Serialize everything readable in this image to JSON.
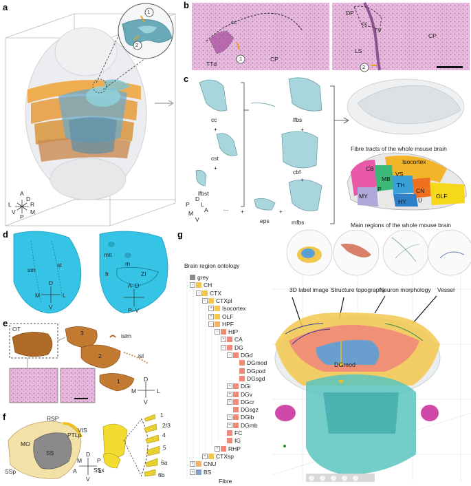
{
  "panels": {
    "a": {
      "letter": "a",
      "circle_labels": [
        "1",
        "2"
      ],
      "axes": {
        "a": "A",
        "d": "D",
        "l": "L",
        "r": "R",
        "m": "M",
        "v": "V",
        "p": "P"
      }
    },
    "b": {
      "letter": "b",
      "left": {
        "cc": "cc",
        "ttd": "TTd",
        "cp": "CP",
        "circle": "1"
      },
      "right": {
        "dp": "DP",
        "cc": "cc",
        "lv": "LV",
        "cp": "CP",
        "ls": "LS",
        "circle": "2"
      }
    },
    "c": {
      "letter": "c",
      "tracts": {
        "cc": "cc",
        "cst": "cst",
        "lfbst": "lfbst",
        "lfbs": "lfbs",
        "cbf": "cbf",
        "eps": "eps",
        "mfbs": "mfbs",
        "dots": "···"
      },
      "plus": "+",
      "axes": {
        "p": "P",
        "d": "D",
        "l": "L",
        "a": "A",
        "m": "M",
        "v": "V"
      },
      "captions": {
        "fibre": "Fibre tracts of the whole mouse brain",
        "regions": "Main regions of the whole mouse brain"
      },
      "regions": {
        "cb": "CB",
        "isocortex": "Isocortex",
        "mb": "MB",
        "vs": "VS",
        "th": "TH",
        "p": "P",
        "my": "MY",
        "cn": "CN",
        "hy": "HY",
        "u": "U",
        "olf": "OLF"
      }
    },
    "d": {
      "letter": "d",
      "left": {
        "sm": "sm",
        "st": "st"
      },
      "right": {
        "mtt": "mtt",
        "m": "m",
        "fr": "fr",
        "zi": "ZI"
      },
      "axes_left": {
        "d": "D",
        "m": "M",
        "l": "L",
        "v": "V"
      },
      "axes_right": {
        "ad": "A–D",
        "pv": "P–V"
      }
    },
    "e": {
      "letter": "e",
      "ot": "OT",
      "layers": [
        "3",
        "2",
        "1"
      ],
      "islm": "islm",
      "isl": "isl",
      "axes": {
        "d": "D",
        "m": "M",
        "l": "L",
        "v": "V"
      }
    },
    "f": {
      "letter": "f",
      "areas": {
        "rsp": "RSP",
        "vis": "VIS",
        "mo": "MO",
        "ptlp": "PTLp",
        "ss": "SS",
        "ssp": "SSp",
        "sss": "SSs"
      },
      "layers": [
        "1",
        "2/3",
        "4",
        "5",
        "6a",
        "6b"
      ],
      "axes": {
        "d": "D",
        "m": "M",
        "a": "A",
        "l": "L",
        "p": "P",
        "v": "V"
      }
    },
    "g": {
      "letter": "g",
      "ontology_title": "Brain region ontology",
      "tree": [
        {
          "label": "grey",
          "color": "#8a8a8a",
          "indent": 0,
          "toggle": ""
        },
        {
          "label": "CH",
          "color": "#f3c74e",
          "indent": 1,
          "toggle": "−"
        },
        {
          "label": "CTX",
          "color": "#f3c74e",
          "indent": 2,
          "toggle": "−"
        },
        {
          "label": "CTXpl",
          "color": "#f3c74e",
          "indent": 3,
          "toggle": "−"
        },
        {
          "label": "Isocortex",
          "color": "#f3c74e",
          "indent": 4,
          "toggle": "+"
        },
        {
          "label": "OLF",
          "color": "#f3c74e",
          "indent": 4,
          "toggle": "+"
        },
        {
          "label": "HPF",
          "color": "#f3b36a",
          "indent": 4,
          "toggle": "−"
        },
        {
          "label": "HIP",
          "color": "#f08a78",
          "indent": 5,
          "toggle": "−"
        },
        {
          "label": "CA",
          "color": "#f08a78",
          "indent": 6,
          "toggle": "+"
        },
        {
          "label": "DG",
          "color": "#f08a78",
          "indent": 6,
          "toggle": "−"
        },
        {
          "label": "DGd",
          "color": "#f08a78",
          "indent": 7,
          "toggle": "−"
        },
        {
          "label": "DGmod",
          "color": "#f08a78",
          "indent": 8,
          "toggle": ""
        },
        {
          "label": "DGpod",
          "color": "#f08a78",
          "indent": 8,
          "toggle": ""
        },
        {
          "label": "DGsgd",
          "color": "#f08a78",
          "indent": 8,
          "toggle": ""
        },
        {
          "label": "DGi",
          "color": "#f08a78",
          "indent": 7,
          "toggle": "+"
        },
        {
          "label": "DGv",
          "color": "#f08a78",
          "indent": 7,
          "toggle": "+"
        },
        {
          "label": "DGcr",
          "color": "#f08a78",
          "indent": 7,
          "toggle": "+"
        },
        {
          "label": "DGsgz",
          "color": "#f08a78",
          "indent": 7,
          "toggle": ""
        },
        {
          "label": "DGlb",
          "color": "#f08a78",
          "indent": 7,
          "toggle": "+"
        },
        {
          "label": "DGmb",
          "color": "#f08a78",
          "indent": 7,
          "toggle": "+"
        },
        {
          "label": "FC",
          "color": "#f08a78",
          "indent": 6,
          "toggle": ""
        },
        {
          "label": "IG",
          "color": "#f08a78",
          "indent": 6,
          "toggle": ""
        },
        {
          "label": "RHP",
          "color": "#f08a78",
          "indent": 5,
          "toggle": "+"
        },
        {
          "label": "CTXsp",
          "color": "#f3c74e",
          "indent": 3,
          "toggle": "+"
        },
        {
          "label": "CNU",
          "color": "#f3b36a",
          "indent": 1,
          "toggle": "+"
        },
        {
          "label": "BS",
          "color": "#8aa0c8",
          "indent": 1,
          "toggle": "+"
        }
      ],
      "fibre": "Fibre",
      "thumbs": [
        "3D label image",
        "Structure topography",
        "Neuron morphology",
        "Vessel"
      ],
      "dgmod": "DGmod"
    }
  }
}
